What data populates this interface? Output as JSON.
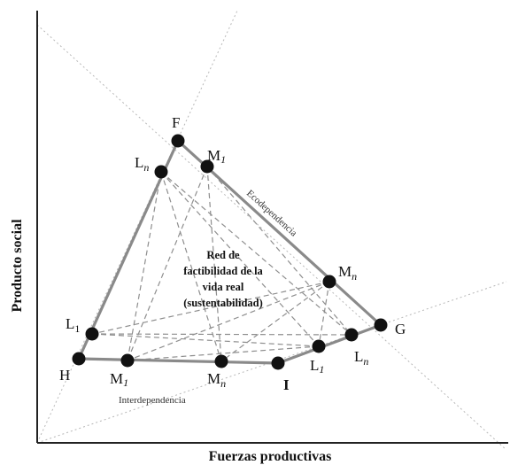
{
  "axes": {
    "x_title": "Fuerzas productivas",
    "y_title": "Producto social"
  },
  "edges": {
    "ecodependencia": "Ecodependencia",
    "interdependencia": "Interdependencia"
  },
  "center_label": {
    "line1": "Red de",
    "line2": "factibilidad de la",
    "line3": "vida real",
    "line4": "(sustentabilidad)"
  },
  "points": {
    "F": "F",
    "G": "G",
    "H": "H",
    "I": "I",
    "top_L": {
      "base": "L",
      "sub": "n"
    },
    "top_M": {
      "base": "M",
      "sub": "1"
    },
    "right_M": {
      "base": "M",
      "sub": "n"
    },
    "left_L": {
      "base": "L",
      "sub": "1"
    },
    "bottom_M1": {
      "base": "M",
      "sub": "1"
    },
    "bottom_Mn": {
      "base": "M",
      "sub": "n"
    },
    "right_L1": {
      "base": "L",
      "sub": "1"
    },
    "right_Ln": {
      "base": "L",
      "sub": "n"
    }
  },
  "colors": {
    "outline": "#8a8a8a",
    "dashed": "#8e8e8e",
    "node": "#111111",
    "axis": "#222222"
  }
}
